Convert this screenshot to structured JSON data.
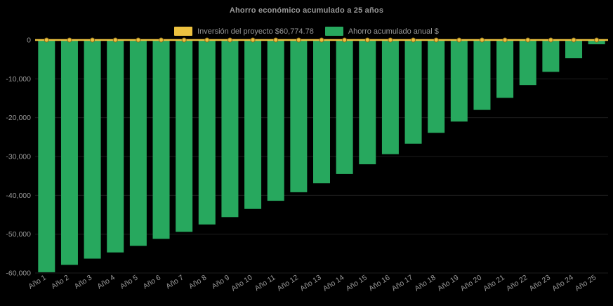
{
  "chart": {
    "title": "Ahorro económico acumulado a 25 años",
    "colors": {
      "background": "#000000",
      "text": "#999999",
      "grid": "#1d1d1d",
      "bar": "#27a85e",
      "line": "#edc240"
    }
  },
  "chart_data": {
    "type": "bar",
    "title": "Ahorro económico acumulado a 25 años",
    "categories": [
      "Año 1",
      "Año 2",
      "Año 3",
      "Año 4",
      "Año 5",
      "Año 6",
      "Año 7",
      "Año 8",
      "Año 9",
      "Año 10",
      "Año 11",
      "Año 12",
      "Año 13",
      "Año 14",
      "Año 15",
      "Año 16",
      "Año 17",
      "Año 18",
      "Año 19",
      "Año 20",
      "Año 21",
      "Año 22",
      "Año 23",
      "Año 24",
      "Año 25"
    ],
    "series": [
      {
        "name": "Inversión del proyecto $60,774.78",
        "type": "line",
        "color": "#edc240",
        "values": [
          0,
          0,
          0,
          0,
          0,
          0,
          0,
          0,
          0,
          0,
          0,
          0,
          0,
          0,
          0,
          0,
          0,
          0,
          0,
          0,
          0,
          0,
          0,
          0,
          0
        ]
      },
      {
        "name": "Ahorro acumulado anual $",
        "type": "bar",
        "color": "#27a85e",
        "values": [
          -59800,
          -57900,
          -56300,
          -54700,
          -53000,
          -51200,
          -49400,
          -47500,
          -45600,
          -43500,
          -41400,
          -39200,
          -36900,
          -34500,
          -32000,
          -29400,
          -26700,
          -23900,
          -21000,
          -18000,
          -14900,
          -11600,
          -8200,
          -4700,
          -1100
        ]
      }
    ],
    "ylim": [
      -60000,
      0
    ],
    "yticks": [
      0,
      -10000,
      -20000,
      -30000,
      -40000,
      -50000,
      -60000
    ],
    "ytick_labels": [
      "0",
      "-10,000",
      "-20,000",
      "-30,000",
      "-40,000",
      "-50,000",
      "-60,000"
    ],
    "xlabel": "",
    "ylabel": "",
    "grid": true,
    "legend_position": "top"
  }
}
